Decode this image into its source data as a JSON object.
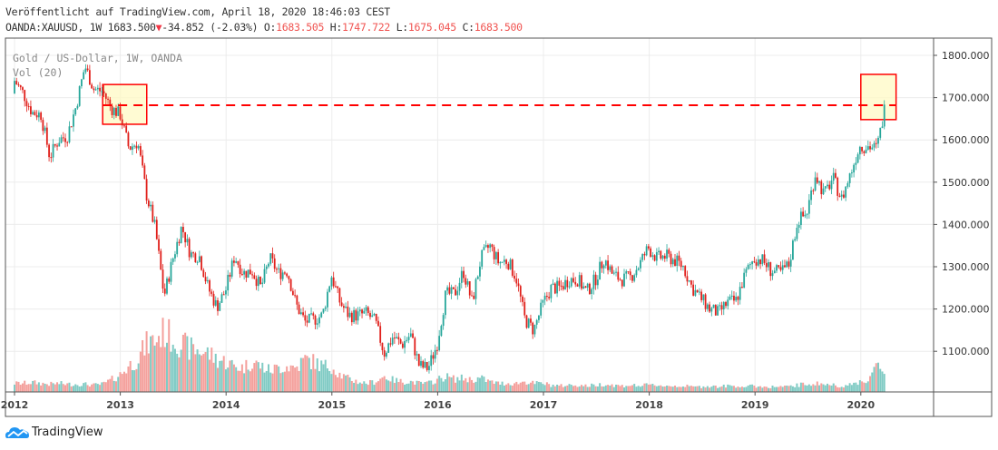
{
  "header": {
    "published": "Veröffentlicht auf TradingView.com, April 18, 2020 18:46:03 CEST",
    "symbol": "OANDA:XAUUSD, 1W 1683.500",
    "change_icon": "triangle-down-icon",
    "change": "-34.852 (-2.03%)",
    "o_label": "O:",
    "o": "1683.505",
    "h_label": "H:",
    "h": "1747.722",
    "l_label": "L:",
    "l": "1675.045",
    "c_label": "C:",
    "c": "1683.500"
  },
  "legend": {
    "series": "Gold  / US-Dollar, 1W, OANDA",
    "volume": "Vol (20)"
  },
  "colors": {
    "up": "#26a69a",
    "down": "#e0201b",
    "vol_up": "#80cbc4",
    "vol_down": "#f4a09c",
    "annotation": "#ff0000",
    "box_fill": "#fff9c4"
  },
  "footer": {
    "brand": "TradingView"
  },
  "chart_data": {
    "type": "candlestick",
    "interval": "1W",
    "y_ticks": [
      "1800.000",
      "1700.000",
      "1600.000",
      "1500.000",
      "1400.000",
      "1300.000",
      "1200.000",
      "1100.000"
    ],
    "y_tick_values": [
      1800,
      1700,
      1600,
      1500,
      1400,
      1300,
      1200,
      1100
    ],
    "x_ticks": [
      "2012",
      "2013",
      "2014",
      "2015",
      "2016",
      "2017",
      "2018",
      "2019",
      "2020"
    ],
    "start": "2012-01",
    "monthly_close": [
      1740,
      1710,
      1665,
      1660,
      1560,
      1600,
      1610,
      1680,
      1775,
      1720,
      1715,
      1675,
      1660,
      1580,
      1595,
      1470,
      1390,
      1230,
      1320,
      1395,
      1330,
      1325,
      1250,
      1205,
      1245,
      1325,
      1285,
      1290,
      1250,
      1320,
      1285,
      1290,
      1210,
      1170,
      1175,
      1185,
      1280,
      1215,
      1185,
      1185,
      1190,
      1170,
      1095,
      1135,
      1115,
      1140,
      1065,
      1060,
      1115,
      1235,
      1235,
      1290,
      1215,
      1320,
      1350,
      1310,
      1315,
      1275,
      1175,
      1150,
      1210,
      1250,
      1250,
      1270,
      1270,
      1240,
      1270,
      1320,
      1280,
      1270,
      1275,
      1305,
      1345,
      1320,
      1325,
      1315,
      1300,
      1250,
      1225,
      1200,
      1190,
      1215,
      1220,
      1280,
      1320,
      1315,
      1290,
      1285,
      1305,
      1410,
      1425,
      1520,
      1470,
      1510,
      1460,
      1520,
      1585,
      1585,
      1580,
      1683.5
    ],
    "monthly_volume_index": [
      10,
      10,
      11,
      10,
      9,
      10,
      9,
      9,
      9,
      8,
      9,
      14,
      20,
      30,
      38,
      55,
      60,
      70,
      62,
      55,
      50,
      48,
      45,
      38,
      35,
      30,
      28,
      35,
      30,
      25,
      28,
      30,
      28,
      38,
      35,
      30,
      30,
      20,
      15,
      12,
      10,
      12,
      18,
      14,
      12,
      12,
      10,
      10,
      14,
      18,
      15,
      16,
      14,
      16,
      12,
      10,
      10,
      10,
      12,
      10,
      10,
      8,
      7,
      8,
      8,
      7,
      8,
      9,
      8,
      7,
      8,
      7,
      8,
      8,
      7,
      7,
      7,
      6,
      6,
      7,
      6,
      7,
      7,
      6,
      7,
      6,
      6,
      6,
      6,
      8,
      9,
      10,
      9,
      8,
      7,
      8,
      12,
      14,
      30,
      20
    ],
    "annotations": [
      {
        "type": "rectangle",
        "from": "2012-11",
        "to": "2013-04",
        "price_top": 1731,
        "price_bottom": 1637
      },
      {
        "type": "rectangle",
        "from": "2020-01",
        "to": "2020-05",
        "price_top": 1755,
        "price_bottom": 1648
      },
      {
        "type": "horizontal-dashed",
        "price": 1682,
        "from": "2012-11",
        "to": "2020-05"
      }
    ]
  }
}
